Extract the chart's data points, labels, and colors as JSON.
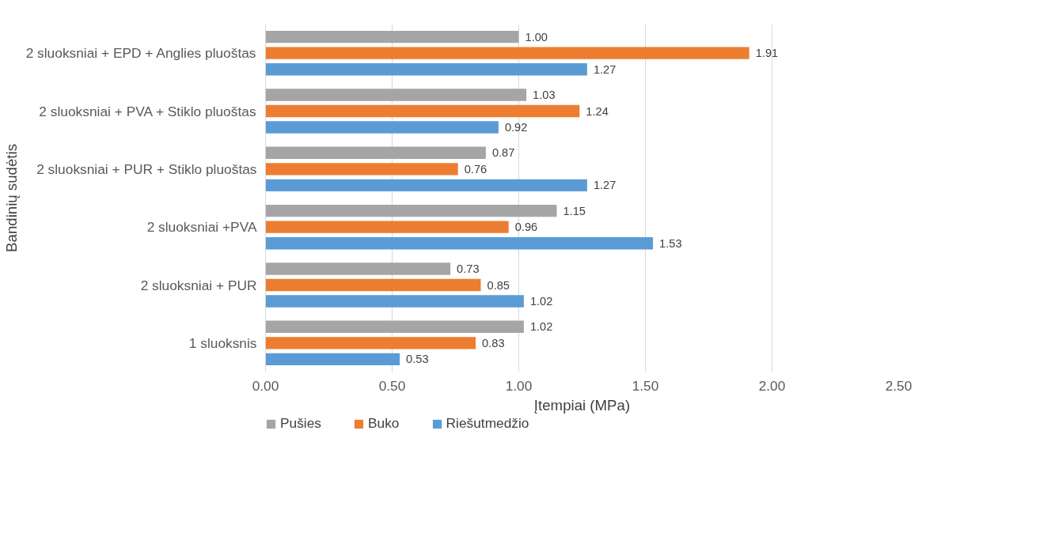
{
  "chart_data": {
    "type": "bar",
    "orientation": "horizontal",
    "xlabel": "Įtempiai (MPa)",
    "ylabel": "Bandinių sudėtis",
    "categories": [
      "2 sluoksniai + EPD + Anglies pluoštas",
      "2 sluoksniai + PVA + Stiklo pluoštas",
      "2 sluoksniai + PUR + Stiklo pluoštas",
      "2 sluoksniai +PVA",
      "2 sluoksniai + PUR",
      "1 sluoksnis"
    ],
    "series": [
      {
        "name": "Pušies",
        "color": "#a5a5a5",
        "values": [
          1.0,
          1.03,
          0.87,
          1.15,
          0.73,
          1.02
        ],
        "value_labels": [
          "1.00",
          "1.03",
          "0.87",
          "1.15",
          "0.73",
          "1.02"
        ]
      },
      {
        "name": "Buko",
        "color": "#ed7d31",
        "values": [
          1.91,
          1.24,
          0.76,
          0.96,
          0.85,
          0.83
        ],
        "value_labels": [
          "1.91",
          "1.24",
          "0.76",
          "0.96",
          "0.85",
          "0.83"
        ]
      },
      {
        "name": "Riešutmedžio",
        "color": "#5b9bd5",
        "values": [
          1.27,
          0.92,
          1.27,
          1.53,
          1.02,
          0.53
        ],
        "value_labels": [
          "1.27",
          "0.92",
          "1.27",
          "1.53",
          "1.02",
          "0.53"
        ]
      }
    ],
    "xlim": [
      0,
      2.5
    ],
    "xticks": [
      {
        "value": 0,
        "label": "0.00"
      },
      {
        "value": 0.5,
        "label": "0.50"
      },
      {
        "value": 1.0,
        "label": "1.00"
      },
      {
        "value": 1.5,
        "label": "1.50"
      },
      {
        "value": 2.0,
        "label": "2.00"
      },
      {
        "value": 2.5,
        "label": "2.50"
      }
    ],
    "grid": "x",
    "legend": "bottom left"
  }
}
